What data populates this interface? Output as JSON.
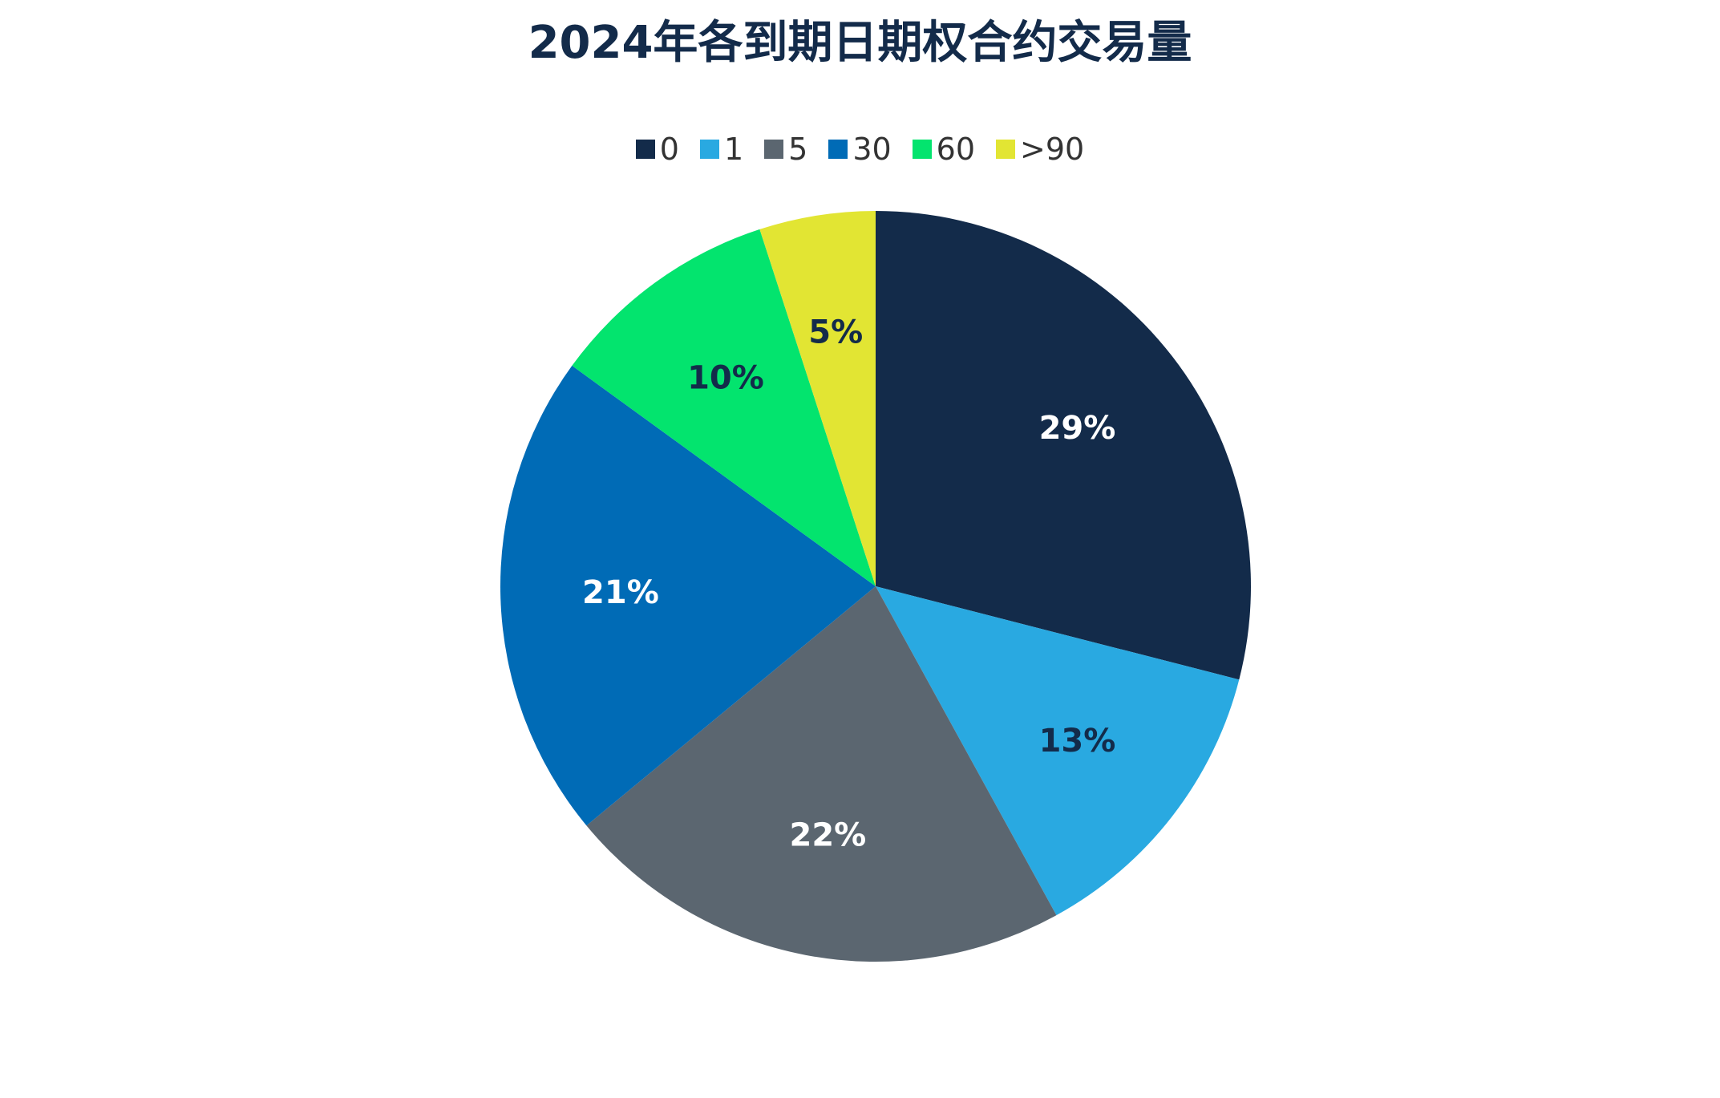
{
  "chart_data": {
    "type": "pie",
    "title": "2024年各到期日期权合约交易量",
    "categories": [
      "0",
      "1",
      "5",
      "30",
      "60",
      ">90"
    ],
    "values": [
      29,
      13,
      22,
      21,
      10,
      5
    ],
    "value_labels": [
      "29%",
      "13%",
      "22%",
      "21%",
      "10%",
      "5%"
    ],
    "colors": [
      "#132b4a",
      "#29a9e1",
      "#5b6670",
      "#006bb6",
      "#03e46e",
      "#e2e533"
    ],
    "legend": "top"
  }
}
